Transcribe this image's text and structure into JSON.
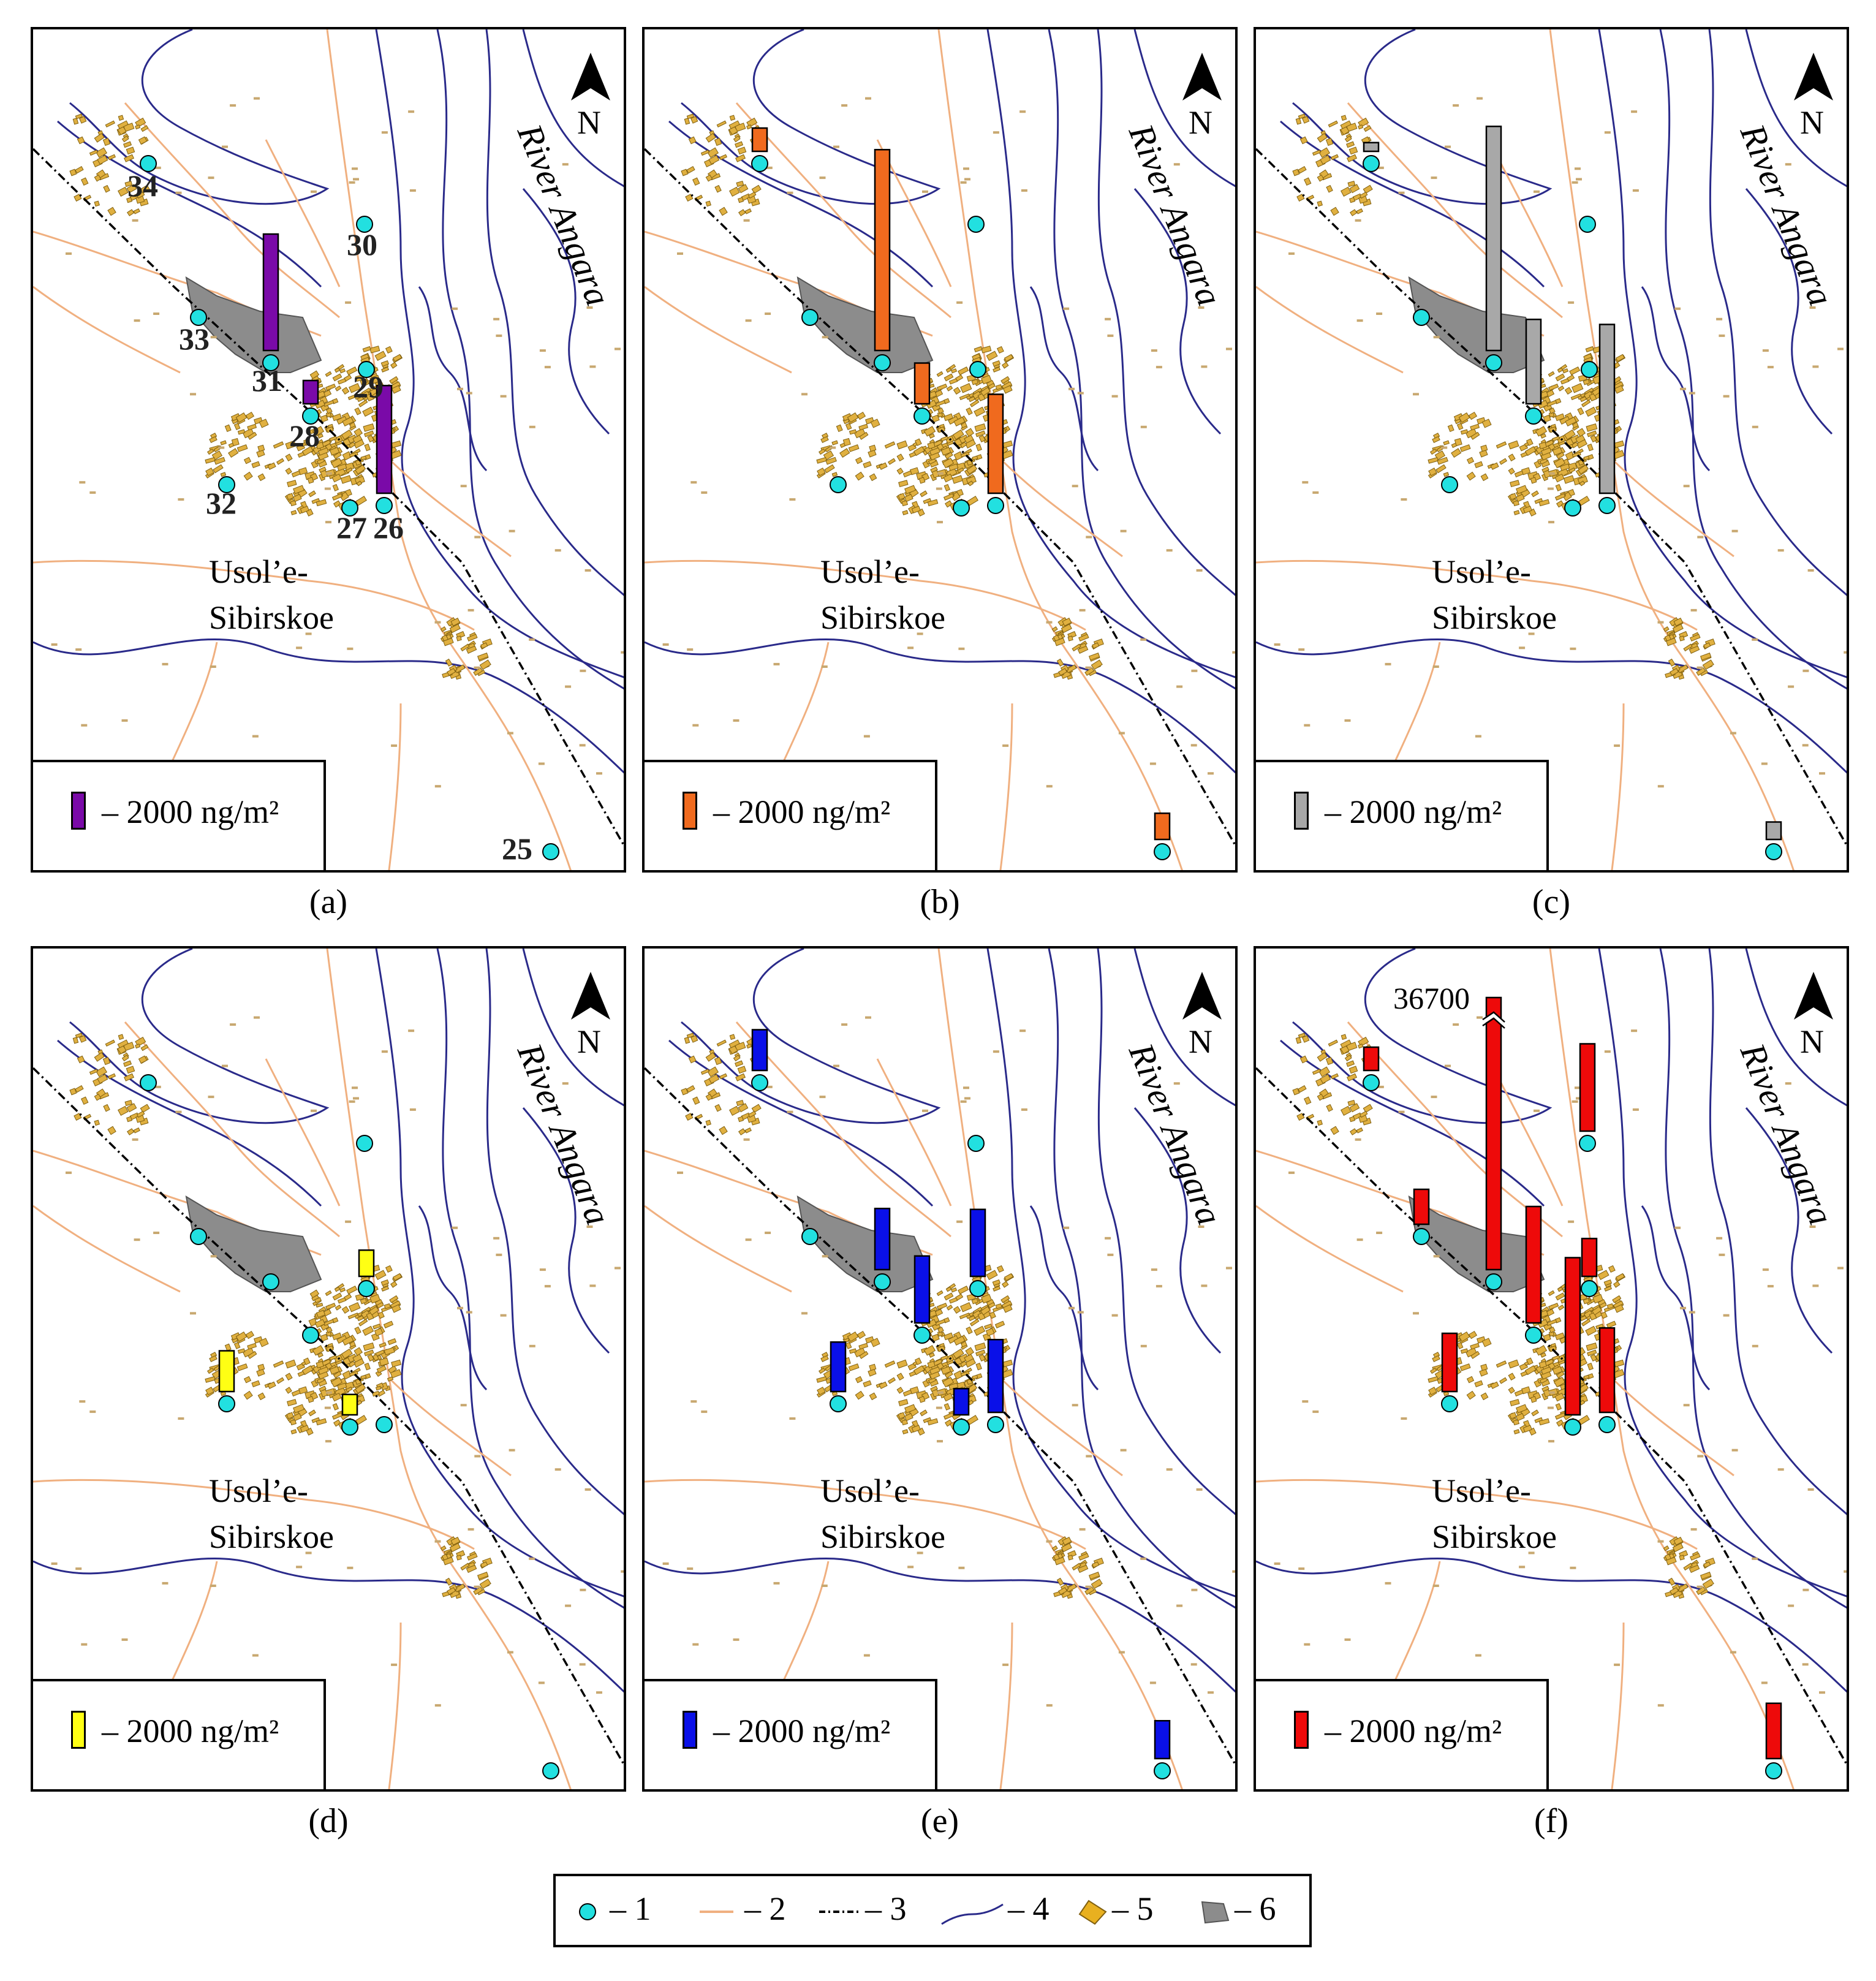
{
  "units_label": "– 2000 ng/m²",
  "town_name_line1": "Usol’e-",
  "town_name_line2": "Sibirskoe",
  "river_name": "River Angara",
  "north_label": "N",
  "panels": [
    {
      "id": "a",
      "caption": "(a)",
      "color": "#7a0aa8",
      "show_numbers": true,
      "bars": [
        {
          "site": "31",
          "value": 2000
        },
        {
          "site": "28",
          "value": 400
        },
        {
          "site": "26",
          "value": 1850
        }
      ]
    },
    {
      "id": "b",
      "caption": "(b)",
      "color": "#f06a1e",
      "show_numbers": false,
      "bars": [
        {
          "site": "34",
          "value": 400
        },
        {
          "site": "31",
          "value": 3450
        },
        {
          "site": "28",
          "value": 700
        },
        {
          "site": "26",
          "value": 1700
        },
        {
          "site": "25",
          "value": 450
        }
      ]
    },
    {
      "id": "c",
      "caption": "(c)",
      "color": "#a8a8a8",
      "show_numbers": false,
      "bars": [
        {
          "site": "34",
          "value": 150
        },
        {
          "site": "31",
          "value": 3850
        },
        {
          "site": "28",
          "value": 1450
        },
        {
          "site": "26",
          "value": 2900
        },
        {
          "site": "25",
          "value": 300
        }
      ]
    },
    {
      "id": "d",
      "caption": "(d)",
      "color": "#ffff14",
      "show_numbers": false,
      "bars": [
        {
          "site": "29",
          "value": 450
        },
        {
          "site": "32",
          "value": 700
        },
        {
          "site": "27",
          "value": 350
        }
      ]
    },
    {
      "id": "e",
      "caption": "(e)",
      "color": "#0a10e8",
      "show_numbers": false,
      "bars": [
        {
          "site": "34",
          "value": 700
        },
        {
          "site": "31",
          "value": 1050
        },
        {
          "site": "28",
          "value": 1150
        },
        {
          "site": "29",
          "value": 1150
        },
        {
          "site": "32",
          "value": 850
        },
        {
          "site": "27",
          "value": 450
        },
        {
          "site": "26",
          "value": 1250
        },
        {
          "site": "25",
          "value": 650
        }
      ]
    },
    {
      "id": "f",
      "caption": "(f)",
      "color": "#ee0a0a",
      "show_numbers": false,
      "bars": [
        {
          "site": "34",
          "value": 400
        },
        {
          "site": "33",
          "value": 600
        },
        {
          "site": "30",
          "value": 1500
        },
        {
          "site": "31",
          "value": 36700,
          "label": "36700",
          "broken": true
        },
        {
          "site": "28",
          "value": 2000
        },
        {
          "site": "29",
          "value": 650
        },
        {
          "site": "32",
          "value": 1000
        },
        {
          "site": "27",
          "value": 2700
        },
        {
          "site": "26",
          "value": 1450
        },
        {
          "site": "25",
          "value": 950
        }
      ]
    }
  ],
  "sites": [
    {
      "id": "25",
      "label": "25"
    },
    {
      "id": "26",
      "label": "26"
    },
    {
      "id": "27",
      "label": "27"
    },
    {
      "id": "28",
      "label": "28"
    },
    {
      "id": "29",
      "label": "29"
    },
    {
      "id": "30",
      "label": "30"
    },
    {
      "id": "31",
      "label": "31"
    },
    {
      "id": "32",
      "label": "32"
    },
    {
      "id": "33",
      "label": "33"
    },
    {
      "id": "34",
      "label": "34"
    }
  ],
  "legend": [
    {
      "symbol": "sampling-site",
      "label": "– 1"
    },
    {
      "symbol": "road",
      "label": "– 2"
    },
    {
      "symbol": "railway",
      "label": "– 3"
    },
    {
      "symbol": "river-shore",
      "label": "– 4"
    },
    {
      "symbol": "buildings",
      "label": "– 5"
    },
    {
      "symbol": "industrial-zone",
      "label": "– 6"
    }
  ],
  "colors": {
    "road": "#f0b080",
    "water": "#2a2a8a",
    "building": "#c8a850",
    "industrial": "#8c8c8c",
    "site": "#22e0e0"
  }
}
